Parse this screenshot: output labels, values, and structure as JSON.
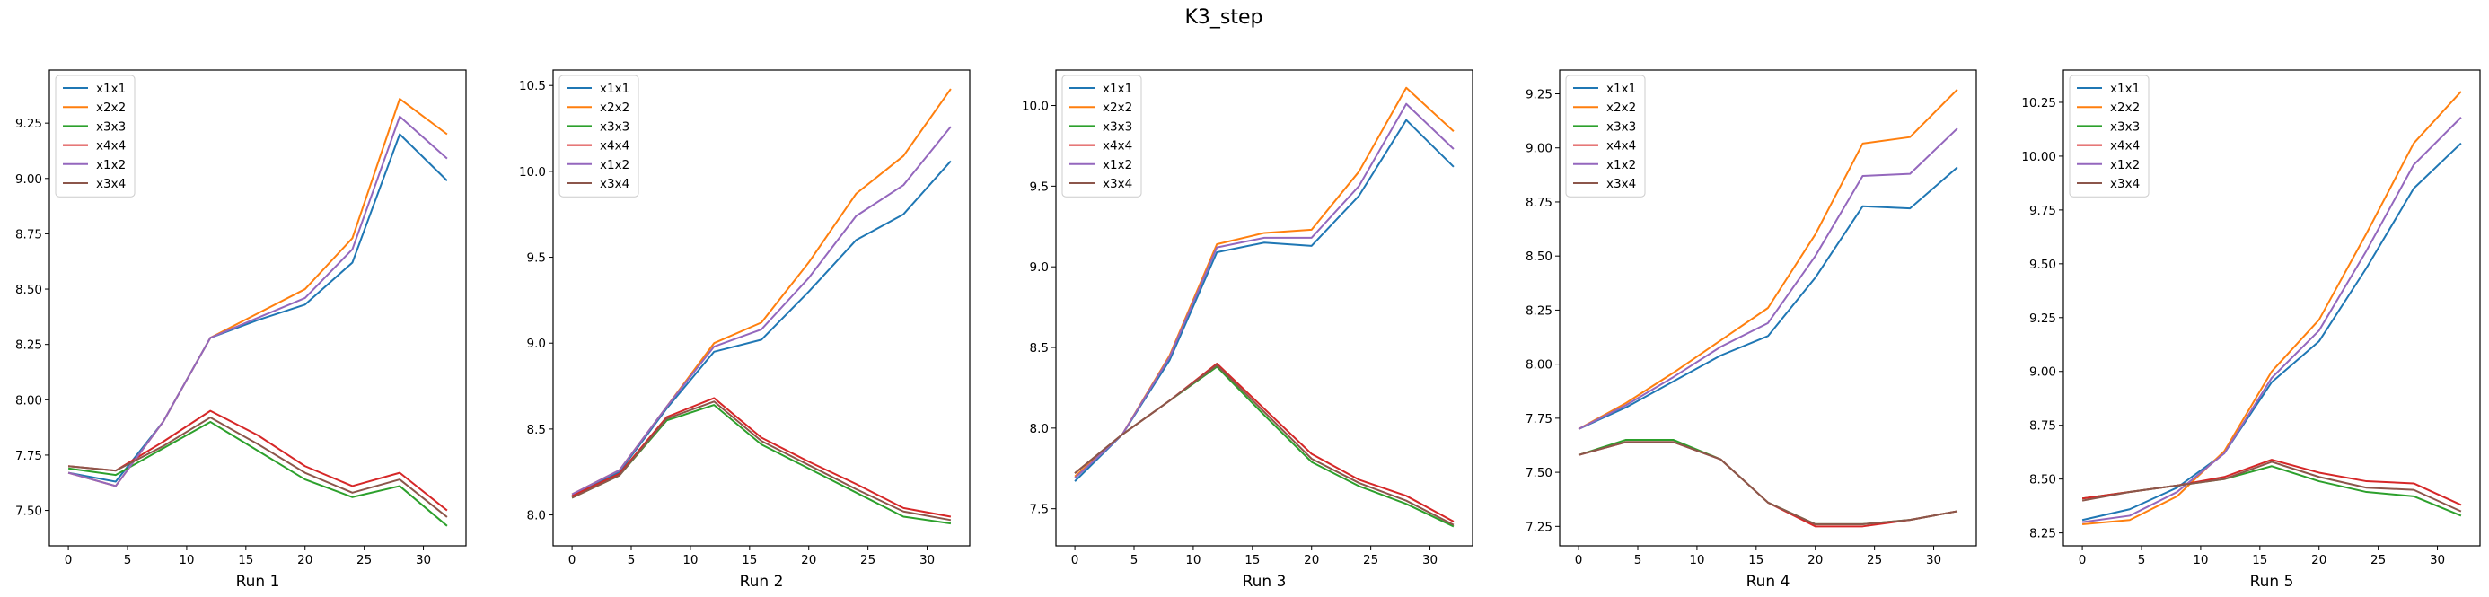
{
  "figure": {
    "title": "K3_step"
  },
  "chart_data": [
    {
      "type": "line",
      "xlabel": "Run 1",
      "x": [
        0,
        4,
        8,
        12,
        16,
        20,
        24,
        28,
        32
      ],
      "xlim": [
        -1.6,
        33.6
      ],
      "ylim": [
        7.34,
        9.49
      ],
      "xticks": [
        0,
        5,
        10,
        15,
        20,
        25,
        30
      ],
      "yticks": [
        "7.50",
        "7.75",
        "8.00",
        "8.25",
        "8.50",
        "8.75",
        "9.00",
        "9.25"
      ],
      "legend": "upper left",
      "series": [
        {
          "name": "x1x1",
          "color": "#1f77b4",
          "values": [
            7.67,
            7.63,
            7.9,
            8.28,
            8.36,
            8.43,
            8.62,
            9.2,
            8.99
          ]
        },
        {
          "name": "x2x2",
          "color": "#ff7f0e",
          "values": [
            7.67,
            7.61,
            7.9,
            8.28,
            8.39,
            8.5,
            8.73,
            9.36,
            9.2
          ]
        },
        {
          "name": "x3x3",
          "color": "#2ca02c",
          "values": [
            7.69,
            7.66,
            7.78,
            7.9,
            7.77,
            7.64,
            7.56,
            7.61,
            7.43
          ]
        },
        {
          "name": "x4x4",
          "color": "#d62728",
          "values": [
            7.7,
            7.68,
            7.81,
            7.95,
            7.84,
            7.7,
            7.61,
            7.67,
            7.5
          ]
        },
        {
          "name": "x1x2",
          "color": "#9467bd",
          "values": [
            7.67,
            7.61,
            7.9,
            8.28,
            8.37,
            8.46,
            8.68,
            9.28,
            9.09
          ]
        },
        {
          "name": "x3x4",
          "color": "#8c564b",
          "values": [
            7.7,
            7.68,
            7.79,
            7.92,
            7.8,
            7.67,
            7.58,
            7.64,
            7.47
          ]
        }
      ]
    },
    {
      "type": "line",
      "xlabel": "Run 2",
      "x": [
        0,
        4,
        8,
        12,
        16,
        20,
        24,
        28,
        32
      ],
      "xlim": [
        -1.6,
        33.6
      ],
      "ylim": [
        7.82,
        10.59
      ],
      "xticks": [
        0,
        5,
        10,
        15,
        20,
        25,
        30
      ],
      "yticks": [
        "8.0",
        "8.5",
        "9.0",
        "9.5",
        "10.0",
        "10.5"
      ],
      "legend": "upper left",
      "series": [
        {
          "name": "x1x1",
          "color": "#1f77b4",
          "values": [
            8.11,
            8.25,
            8.62,
            8.95,
            9.02,
            9.3,
            9.6,
            9.75,
            10.06
          ]
        },
        {
          "name": "x2x2",
          "color": "#ff7f0e",
          "values": [
            8.12,
            8.26,
            8.63,
            9.0,
            9.12,
            9.47,
            9.87,
            10.09,
            10.48
          ]
        },
        {
          "name": "x3x3",
          "color": "#2ca02c",
          "values": [
            8.1,
            8.23,
            8.55,
            8.64,
            8.41,
            8.27,
            8.13,
            7.99,
            7.95
          ]
        },
        {
          "name": "x4x4",
          "color": "#d62728",
          "values": [
            8.11,
            8.24,
            8.57,
            8.68,
            8.45,
            8.31,
            8.18,
            8.04,
            7.99
          ]
        },
        {
          "name": "x1x2",
          "color": "#9467bd",
          "values": [
            8.12,
            8.26,
            8.63,
            8.98,
            9.08,
            9.38,
            9.74,
            9.92,
            10.26
          ]
        },
        {
          "name": "x3x4",
          "color": "#8c564b",
          "values": [
            8.1,
            8.23,
            8.56,
            8.66,
            8.43,
            8.29,
            8.15,
            8.02,
            7.97
          ]
        }
      ]
    },
    {
      "type": "line",
      "xlabel": "Run 3",
      "x": [
        0,
        4,
        8,
        12,
        16,
        20,
        24,
        28,
        32
      ],
      "xlim": [
        -1.6,
        33.6
      ],
      "ylim": [
        7.27,
        10.22
      ],
      "xticks": [
        0,
        5,
        10,
        15,
        20,
        25,
        30
      ],
      "yticks": [
        "7.5",
        "8.0",
        "8.5",
        "9.0",
        "9.5",
        "10.0"
      ],
      "legend": "upper left",
      "series": [
        {
          "name": "x1x1",
          "color": "#1f77b4",
          "values": [
            7.67,
            7.96,
            8.42,
            9.09,
            9.15,
            9.13,
            9.44,
            9.91,
            9.62
          ]
        },
        {
          "name": "x2x2",
          "color": "#ff7f0e",
          "values": [
            7.7,
            7.96,
            8.45,
            9.14,
            9.21,
            9.23,
            9.59,
            10.11,
            9.84
          ]
        },
        {
          "name": "x3x3",
          "color": "#2ca02c",
          "values": [
            7.72,
            7.96,
            8.17,
            8.38,
            8.08,
            7.79,
            7.64,
            7.53,
            7.39
          ]
        },
        {
          "name": "x4x4",
          "color": "#d62728",
          "values": [
            7.72,
            7.96,
            8.17,
            8.4,
            8.12,
            7.84,
            7.68,
            7.58,
            7.42
          ]
        },
        {
          "name": "x1x2",
          "color": "#9467bd",
          "values": [
            7.69,
            7.96,
            8.44,
            9.12,
            9.18,
            9.18,
            9.5,
            10.01,
            9.73
          ]
        },
        {
          "name": "x3x4",
          "color": "#8c564b",
          "values": [
            7.72,
            7.96,
            8.17,
            8.39,
            8.1,
            7.81,
            7.66,
            7.55,
            7.4
          ]
        }
      ]
    },
    {
      "type": "line",
      "xlabel": "Run 4",
      "x": [
        0,
        4,
        8,
        12,
        16,
        20,
        24,
        28,
        32
      ],
      "xlim": [
        -1.6,
        33.6
      ],
      "ylim": [
        7.16,
        9.36
      ],
      "xticks": [
        0,
        5,
        10,
        15,
        20,
        25,
        30
      ],
      "yticks": [
        "7.25",
        "7.50",
        "7.75",
        "8.00",
        "8.25",
        "8.50",
        "8.75",
        "9.00",
        "9.25"
      ],
      "legend": "upper left",
      "series": [
        {
          "name": "x1x1",
          "color": "#1f77b4",
          "values": [
            7.7,
            7.8,
            7.92,
            8.04,
            8.13,
            8.4,
            8.73,
            8.72,
            8.91
          ]
        },
        {
          "name": "x2x2",
          "color": "#ff7f0e",
          "values": [
            7.7,
            7.82,
            7.96,
            8.11,
            8.26,
            8.6,
            9.02,
            9.05,
            9.27
          ]
        },
        {
          "name": "x3x3",
          "color": "#2ca02c",
          "values": [
            7.58,
            7.65,
            7.65,
            7.56,
            7.36,
            7.26,
            7.26,
            7.28,
            7.32
          ]
        },
        {
          "name": "x4x4",
          "color": "#d62728",
          "values": [
            7.58,
            7.64,
            7.64,
            7.56,
            7.36,
            7.25,
            7.25,
            7.28,
            7.32
          ]
        },
        {
          "name": "x1x2",
          "color": "#9467bd",
          "values": [
            7.7,
            7.81,
            7.94,
            8.08,
            8.19,
            8.5,
            8.87,
            8.88,
            9.09
          ]
        },
        {
          "name": "x3x4",
          "color": "#8c564b",
          "values": [
            7.58,
            7.64,
            7.64,
            7.56,
            7.36,
            7.26,
            7.26,
            7.28,
            7.32
          ]
        }
      ]
    },
    {
      "type": "line",
      "xlabel": "Run 5",
      "x": [
        0,
        4,
        8,
        12,
        16,
        20,
        24,
        28,
        32
      ],
      "xlim": [
        -1.6,
        33.6
      ],
      "ylim": [
        8.19,
        10.4
      ],
      "xticks": [
        0,
        5,
        10,
        15,
        20,
        25,
        30
      ],
      "yticks": [
        "8.25",
        "8.50",
        "8.75",
        "9.00",
        "9.25",
        "9.50",
        "9.75",
        "10.00",
        "10.25"
      ],
      "legend": "upper left",
      "series": [
        {
          "name": "x1x1",
          "color": "#1f77b4",
          "values": [
            8.31,
            8.36,
            8.46,
            8.62,
            8.95,
            9.14,
            9.48,
            9.85,
            10.06
          ]
        },
        {
          "name": "x2x2",
          "color": "#ff7f0e",
          "values": [
            8.29,
            8.31,
            8.42,
            8.63,
            9.0,
            9.24,
            9.64,
            10.06,
            10.3
          ]
        },
        {
          "name": "x3x3",
          "color": "#2ca02c",
          "values": [
            8.41,
            8.44,
            8.47,
            8.5,
            8.56,
            8.49,
            8.44,
            8.42,
            8.33
          ]
        },
        {
          "name": "x4x4",
          "color": "#d62728",
          "values": [
            8.41,
            8.44,
            8.47,
            8.51,
            8.59,
            8.53,
            8.49,
            8.48,
            8.38
          ]
        },
        {
          "name": "x1x2",
          "color": "#9467bd",
          "values": [
            8.3,
            8.33,
            8.44,
            8.62,
            8.97,
            9.19,
            9.56,
            9.96,
            10.18
          ]
        },
        {
          "name": "x3x4",
          "color": "#8c564b",
          "values": [
            8.4,
            8.44,
            8.47,
            8.5,
            8.58,
            8.51,
            8.46,
            8.45,
            8.35
          ]
        }
      ]
    }
  ]
}
